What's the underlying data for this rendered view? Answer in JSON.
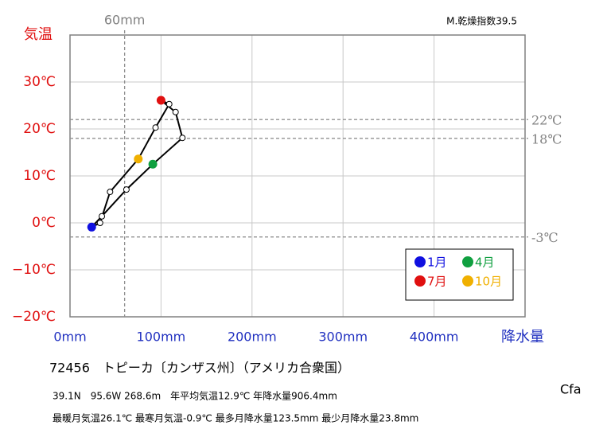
{
  "chart_data": {
    "type": "climograph",
    "x": [
      23.8,
      35,
      62,
      91,
      123.5,
      116,
      100,
      109,
      94,
      75,
      44,
      33
    ],
    "values": [
      -0.9,
      1.4,
      7.1,
      12.5,
      18.1,
      23.6,
      26.1,
      25.3,
      20.3,
      13.6,
      6.6,
      0.0
    ],
    "point_colors": [
      "#1010e0",
      "#ffffff",
      "#ffffff",
      "#10a040",
      "#ffffff",
      "#ffffff",
      "#e01010",
      "#ffffff",
      "#ffffff",
      "#f0b000",
      "#ffffff",
      "#ffffff"
    ],
    "line_color": "#000000",
    "xlim": [
      0,
      500
    ],
    "ylim": [
      -20,
      40
    ],
    "xticks": [
      {
        "value": 0,
        "label": "0mm"
      },
      {
        "value": 100,
        "label": "100mm"
      },
      {
        "value": 200,
        "label": "200mm"
      },
      {
        "value": 300,
        "label": "300mm"
      },
      {
        "value": 400,
        "label": "400mm"
      }
    ],
    "yticks": [
      {
        "value": -20,
        "label": "−20℃"
      },
      {
        "value": -10,
        "label": "−10℃"
      },
      {
        "value": 0,
        "label": "0℃"
      },
      {
        "value": 10,
        "label": "10℃"
      },
      {
        "value": 20,
        "label": "20℃"
      },
      {
        "value": 30,
        "label": "30℃"
      }
    ],
    "xgrid": [
      100,
      200,
      300,
      400
    ],
    "grid": true,
    "ylabel": "気温",
    "xlabel": "降水量",
    "ref_lines_y": [
      {
        "value": 22,
        "label": "22℃"
      },
      {
        "value": 18,
        "label": "18℃"
      },
      {
        "value": -3,
        "label": "-3℃"
      }
    ],
    "ref_lines_x": [
      {
        "value": 60,
        "label": "60mm"
      }
    ],
    "legend": [
      {
        "name": "1月",
        "color": "#1010e0"
      },
      {
        "name": "4月",
        "color": "#10a040"
      },
      {
        "name": "7月",
        "color": "#e01010"
      },
      {
        "name": "10月",
        "color": "#f0b000"
      }
    ],
    "legend_position": "lower right",
    "dryness_index": "M.乾燥指数39.5"
  },
  "station": "72456　トピーカ〔カンザス州〕（アメリカ合衆国）",
  "info_line1": "39.1N　95.6W 268.6m　年平均気温12.9℃ 年降水量906.4mm",
  "info_line2": "最暖月気温26.1℃ 最寒月気温-0.9℃ 最多月降水量123.5mm 最少月降水量23.8mm",
  "climate_class": "Cfa"
}
